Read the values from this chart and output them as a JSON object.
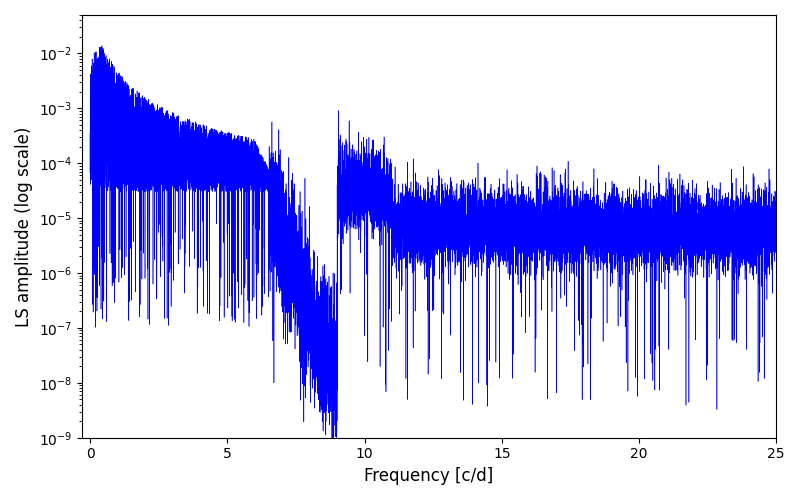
{
  "xlabel": "Frequency [c/d]",
  "ylabel": "LS amplitude (log scale)",
  "xlim": [
    -0.3,
    25
  ],
  "ylim": [
    1e-09,
    0.05
  ],
  "xticks": [
    0,
    5,
    10,
    15,
    20,
    25
  ],
  "line_color": "blue",
  "figsize": [
    8.0,
    5.0
  ],
  "dpi": 100,
  "seed": 123,
  "n_points": 15000,
  "freq_max": 25.0,
  "background": "white"
}
